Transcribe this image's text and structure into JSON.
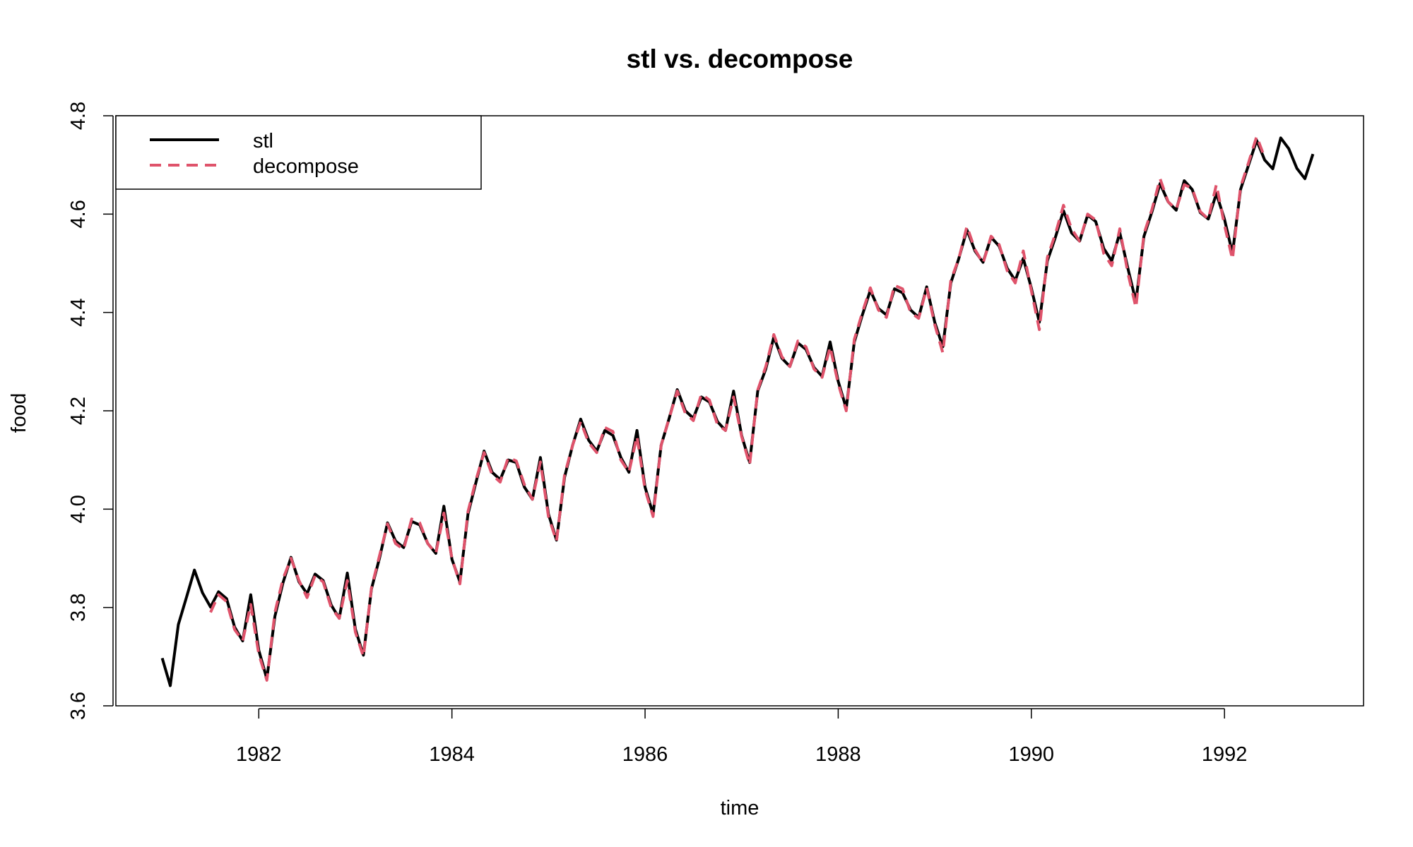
{
  "chart_data": {
    "type": "line",
    "title": "stl vs. decompose",
    "xlabel": "time",
    "ylabel": "food",
    "xlim": [
      1980.52,
      1993.44
    ],
    "ylim": [
      3.6,
      4.8
    ],
    "x_ticks": [
      "1982",
      "1984",
      "1986",
      "1988",
      "1990",
      "1992"
    ],
    "y_ticks": [
      "3.6",
      "3.8",
      "4.0",
      "4.2",
      "4.4",
      "4.6",
      "4.8"
    ],
    "grid": false,
    "legend_position": "top-left",
    "x_start": 1981.0,
    "x_step": 0.08333,
    "series": [
      {
        "name": "stl",
        "color": "#000000",
        "dash": "solid",
        "values": [
          3.697,
          3.641,
          3.765,
          3.82,
          3.876,
          3.83,
          3.801,
          3.832,
          3.818,
          3.76,
          3.732,
          3.826,
          3.713,
          3.655,
          3.782,
          3.85,
          3.902,
          3.852,
          3.828,
          3.868,
          3.855,
          3.805,
          3.778,
          3.87,
          3.756,
          3.703,
          3.838,
          3.9,
          3.972,
          3.935,
          3.922,
          3.975,
          3.968,
          3.93,
          3.91,
          4.006,
          3.898,
          3.852,
          3.99,
          4.055,
          4.118,
          4.075,
          4.06,
          4.1,
          4.095,
          4.045,
          4.02,
          4.105,
          3.99,
          3.937,
          4.065,
          4.13,
          4.183,
          4.14,
          4.118,
          4.16,
          4.15,
          4.105,
          4.075,
          4.16,
          4.045,
          3.99,
          4.13,
          4.185,
          4.243,
          4.2,
          4.185,
          4.228,
          4.218,
          4.178,
          4.16,
          4.24,
          4.15,
          4.095,
          4.24,
          4.285,
          4.35,
          4.307,
          4.29,
          4.338,
          4.325,
          4.288,
          4.27,
          4.34,
          4.26,
          4.205,
          4.34,
          4.395,
          4.445,
          4.408,
          4.395,
          4.448,
          4.44,
          4.405,
          4.39,
          4.452,
          4.38,
          4.33,
          4.46,
          4.51,
          4.568,
          4.525,
          4.502,
          4.553,
          4.535,
          4.49,
          4.465,
          4.51,
          4.45,
          4.38,
          4.505,
          4.553,
          4.607,
          4.562,
          4.545,
          4.598,
          4.585,
          4.53,
          4.505,
          4.562,
          4.49,
          4.422,
          4.555,
          4.605,
          4.662,
          4.625,
          4.608,
          4.668,
          4.65,
          4.603,
          4.59,
          4.642,
          4.59,
          4.52,
          4.65,
          4.7,
          4.75,
          4.71,
          4.692,
          4.755,
          4.733,
          4.693,
          4.672,
          4.722
        ]
      },
      {
        "name": "decompose",
        "color": "#DF536B",
        "dash": "dashed",
        "values": [
          null,
          null,
          null,
          null,
          null,
          null,
          3.79,
          3.826,
          3.812,
          3.755,
          3.732,
          3.806,
          3.705,
          3.652,
          3.79,
          3.858,
          3.9,
          3.855,
          3.82,
          3.865,
          3.852,
          3.8,
          3.778,
          3.855,
          3.75,
          3.7,
          3.84,
          3.905,
          3.97,
          3.93,
          3.918,
          3.98,
          3.972,
          3.93,
          3.91,
          3.992,
          3.9,
          3.848,
          3.995,
          4.06,
          4.115,
          4.07,
          4.055,
          4.105,
          4.098,
          4.05,
          4.02,
          4.096,
          3.985,
          3.935,
          4.07,
          4.13,
          4.178,
          4.135,
          4.115,
          4.166,
          4.158,
          4.1,
          4.075,
          4.148,
          4.04,
          3.985,
          4.13,
          4.185,
          4.24,
          4.195,
          4.18,
          4.234,
          4.222,
          4.172,
          4.16,
          4.228,
          4.148,
          4.09,
          4.242,
          4.29,
          4.355,
          4.31,
          4.29,
          4.342,
          4.33,
          4.285,
          4.268,
          4.33,
          4.255,
          4.2,
          4.345,
          4.4,
          4.45,
          4.405,
          4.39,
          4.455,
          4.448,
          4.4,
          4.388,
          4.45,
          4.375,
          4.318,
          4.465,
          4.51,
          4.575,
          4.528,
          4.5,
          4.555,
          4.538,
          4.485,
          4.46,
          4.525,
          4.445,
          4.365,
          4.512,
          4.56,
          4.618,
          4.57,
          4.545,
          4.6,
          4.588,
          4.52,
          4.495,
          4.57,
          4.48,
          4.41,
          4.56,
          4.61,
          4.672,
          4.625,
          4.61,
          4.66,
          4.652,
          4.605,
          4.59,
          4.66,
          4.578,
          4.508,
          4.655,
          4.705,
          4.758,
          4.715,
          null,
          null,
          null,
          null,
          null,
          null
        ]
      }
    ]
  }
}
